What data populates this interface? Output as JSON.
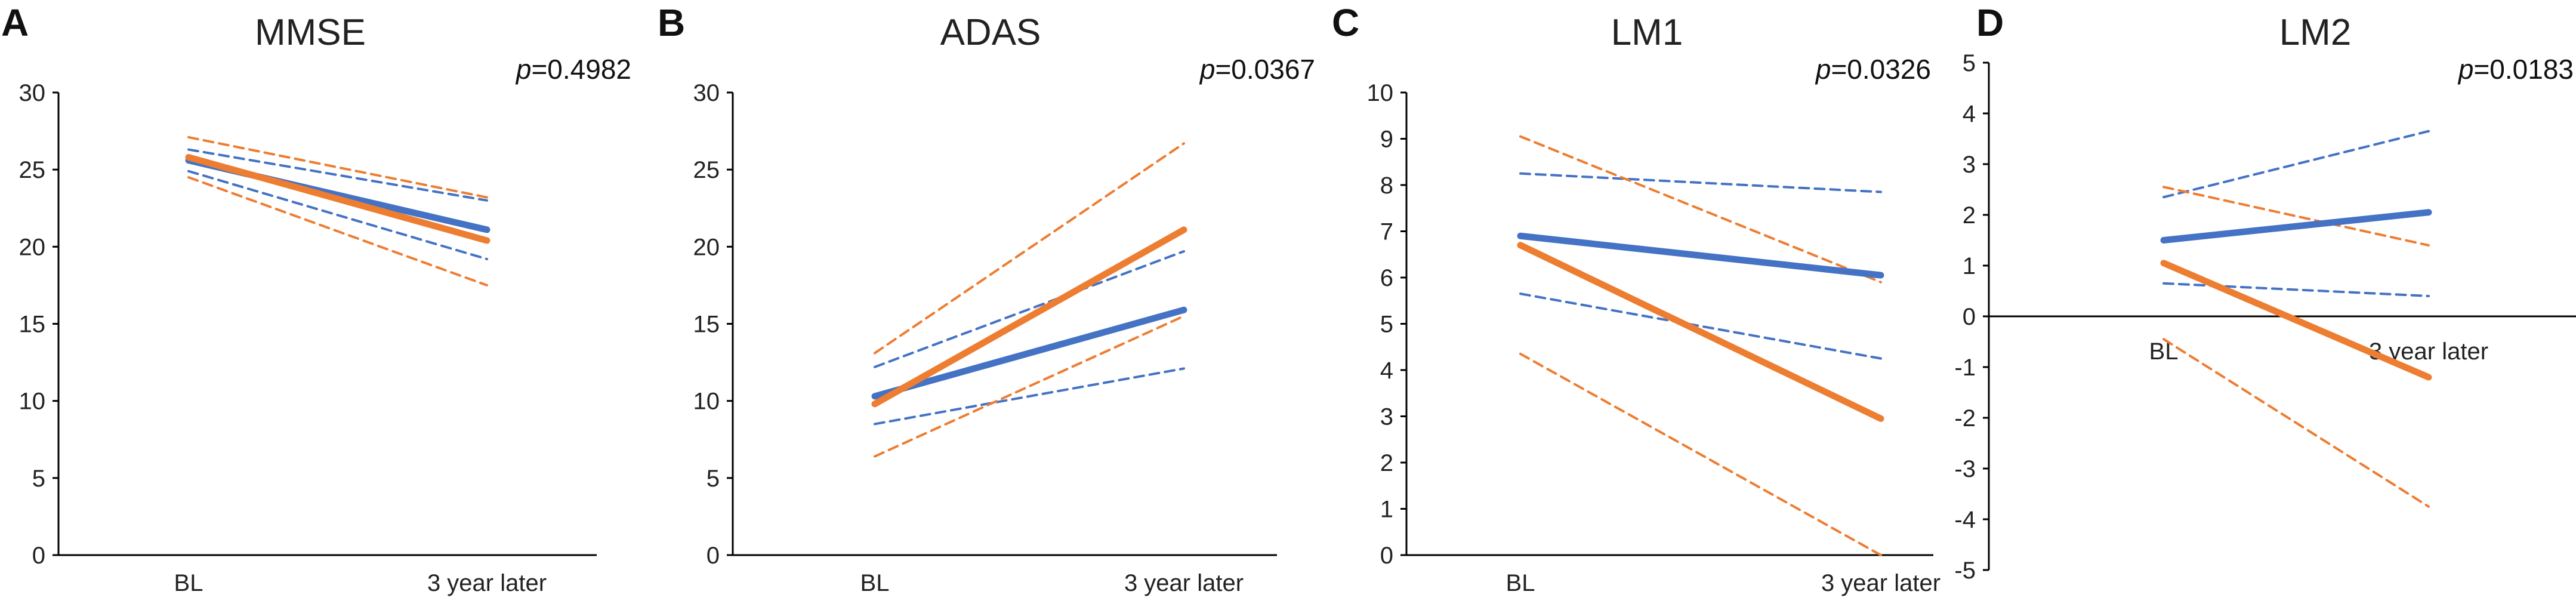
{
  "chart_data": [
    {
      "panel": "A",
      "type": "line",
      "title": "MMSE",
      "p_label": "p",
      "p_value": "=0.4982",
      "categories": [
        "BL",
        "3 year later"
      ],
      "ylim": [
        0,
        30
      ],
      "yticks": [
        0,
        5,
        10,
        15,
        20,
        25,
        30
      ],
      "xaxis_at": 0,
      "label_pos": "bottom",
      "colors": {
        "blue": "#4472C4",
        "orange": "#ED7D31"
      },
      "series": [
        {
          "name": "blue-mean",
          "color": "blue",
          "style": "solid",
          "values": [
            25.6,
            21.1
          ]
        },
        {
          "name": "blue-upper",
          "color": "blue",
          "style": "dashed",
          "values": [
            26.3,
            23.0
          ]
        },
        {
          "name": "blue-lower",
          "color": "blue",
          "style": "dashed",
          "values": [
            24.9,
            19.2
          ]
        },
        {
          "name": "orange-mean",
          "color": "orange",
          "style": "solid",
          "values": [
            25.8,
            20.4
          ]
        },
        {
          "name": "orange-upper",
          "color": "orange",
          "style": "dashed",
          "values": [
            27.1,
            23.2
          ]
        },
        {
          "name": "orange-lower",
          "color": "orange",
          "style": "dashed",
          "values": [
            24.5,
            17.5
          ]
        }
      ]
    },
    {
      "panel": "B",
      "type": "line",
      "title": "ADAS",
      "p_label": "p",
      "p_value": "=0.0367",
      "categories": [
        "BL",
        "3 year later"
      ],
      "ylim": [
        0,
        30
      ],
      "yticks": [
        0,
        5,
        10,
        15,
        20,
        25,
        30
      ],
      "xaxis_at": 0,
      "label_pos": "bottom",
      "colors": {
        "blue": "#4472C4",
        "orange": "#ED7D31"
      },
      "series": [
        {
          "name": "blue-mean",
          "color": "blue",
          "style": "solid",
          "values": [
            10.3,
            15.9
          ]
        },
        {
          "name": "blue-upper",
          "color": "blue",
          "style": "dashed",
          "values": [
            12.2,
            19.7
          ]
        },
        {
          "name": "blue-lower",
          "color": "blue",
          "style": "dashed",
          "values": [
            8.5,
            12.1
          ]
        },
        {
          "name": "orange-mean",
          "color": "orange",
          "style": "solid",
          "values": [
            9.8,
            21.1
          ]
        },
        {
          "name": "orange-upper",
          "color": "orange",
          "style": "dashed",
          "values": [
            13.1,
            26.7
          ]
        },
        {
          "name": "orange-lower",
          "color": "orange",
          "style": "dashed",
          "values": [
            6.4,
            15.5
          ]
        }
      ]
    },
    {
      "panel": "C",
      "type": "line",
      "title": "LM1",
      "p_label": "p",
      "p_value": "=0.0326",
      "categories": [
        "BL",
        "3 year later"
      ],
      "ylim": [
        0,
        10
      ],
      "yticks": [
        0,
        1,
        2,
        3,
        4,
        5,
        6,
        7,
        8,
        9,
        10
      ],
      "xaxis_at": 0,
      "label_pos": "bottom",
      "colors": {
        "blue": "#4472C4",
        "orange": "#ED7D31"
      },
      "series": [
        {
          "name": "blue-mean",
          "color": "blue",
          "style": "solid",
          "values": [
            6.9,
            6.05
          ]
        },
        {
          "name": "blue-upper",
          "color": "blue",
          "style": "dashed",
          "values": [
            8.25,
            7.85
          ]
        },
        {
          "name": "blue-lower",
          "color": "blue",
          "style": "dashed",
          "values": [
            5.65,
            4.25
          ]
        },
        {
          "name": "orange-mean",
          "color": "orange",
          "style": "solid",
          "values": [
            6.7,
            2.95
          ]
        },
        {
          "name": "orange-upper",
          "color": "orange",
          "style": "dashed",
          "values": [
            9.05,
            5.9
          ]
        },
        {
          "name": "orange-lower",
          "color": "orange",
          "style": "dashed",
          "values": [
            4.35,
            0.0
          ]
        }
      ]
    },
    {
      "panel": "D",
      "type": "line",
      "title": "LM2",
      "p_label": "p",
      "p_value": "=0.0183",
      "categories": [
        "BL",
        "3 year later"
      ],
      "ylim": [
        -5,
        5
      ],
      "yticks": [
        -5,
        -4,
        -3,
        -2,
        -1,
        0,
        1,
        2,
        3,
        4,
        5
      ],
      "xaxis_at": 0,
      "label_pos": "below-axis",
      "colors": {
        "blue": "#4472C4",
        "orange": "#ED7D31"
      },
      "series": [
        {
          "name": "blue-mean",
          "color": "blue",
          "style": "solid",
          "values": [
            1.5,
            2.05
          ]
        },
        {
          "name": "blue-upper",
          "color": "blue",
          "style": "dashed",
          "values": [
            2.35,
            3.65
          ]
        },
        {
          "name": "blue-lower",
          "color": "blue",
          "style": "dashed",
          "values": [
            0.65,
            0.4
          ]
        },
        {
          "name": "orange-mean",
          "color": "orange",
          "style": "solid",
          "values": [
            1.05,
            -1.2
          ]
        },
        {
          "name": "orange-upper",
          "color": "orange",
          "style": "dashed",
          "values": [
            2.55,
            1.4
          ]
        },
        {
          "name": "orange-lower",
          "color": "orange",
          "style": "dashed",
          "values": [
            -0.45,
            -3.75
          ]
        }
      ]
    }
  ]
}
